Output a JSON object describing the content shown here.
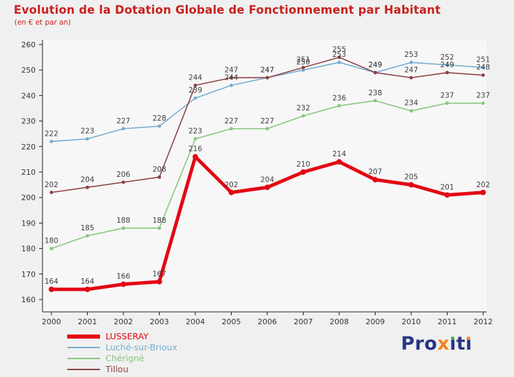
{
  "title": "Evolution de la Dotation Globale de Fonctionnement par Habitant",
  "subtitle": "(en € et par an)",
  "colors": {
    "title": "#c9211e",
    "background": "#f0f0f0",
    "plot_background": "#f7f7f7",
    "axis": "#1a1a1a",
    "value_label": "#3c3c3c",
    "tick_label": "#333333"
  },
  "legend": {
    "items": [
      {
        "label": "LUSSERAY",
        "color": "#e30613",
        "thick": true
      },
      {
        "label": "Luché-sur-Brioux",
        "color": "#74add1",
        "thick": false
      },
      {
        "label": "Chérigné",
        "color": "#86c67c",
        "thick": false
      },
      {
        "label": "Tillou",
        "color": "#8e4044",
        "thick": false
      }
    ]
  },
  "logo": {
    "name": "Proxiti",
    "segments": [
      {
        "text": "Pro",
        "color": "#283583"
      },
      {
        "text": "x",
        "color": "#f58220"
      },
      {
        "text": "ı",
        "color": "#283583",
        "dot": "#3fae49"
      },
      {
        "text": "t",
        "color": "#283583"
      },
      {
        "text": "ı",
        "color": "#283583",
        "dot": "#f58220"
      }
    ]
  },
  "chart_data": {
    "type": "line",
    "title": "Evolution de la Dotation Globale de Fonctionnement par Habitant",
    "subtitle": "(en € et par an)",
    "x": [
      2000,
      2001,
      2002,
      2003,
      2004,
      2005,
      2006,
      2007,
      2008,
      2009,
      2010,
      2011,
      2012
    ],
    "ylim": [
      160,
      260
    ],
    "yticks": [
      160,
      170,
      180,
      190,
      200,
      210,
      220,
      230,
      240,
      250,
      260
    ],
    "grid": false,
    "legend_position": "bottom-left",
    "series": [
      {
        "name": "LUSSERAY",
        "color": "#e30613",
        "width": 5,
        "marker": 4,
        "z": 4,
        "values": [
          164,
          164,
          166,
          167,
          216,
          202,
          204,
          210,
          214,
          207,
          205,
          201,
          202
        ]
      },
      {
        "name": "Luché-sur-Brioux",
        "color": "#74add1",
        "width": 1.6,
        "marker": 2.5,
        "z": 1,
        "values": [
          222,
          223,
          227,
          228,
          239,
          244,
          247,
          250,
          253,
          249,
          253,
          252,
          251
        ]
      },
      {
        "name": "Chérigné",
        "color": "#86c67c",
        "width": 1.6,
        "marker": 2.5,
        "z": 2,
        "values": [
          180,
          185,
          188,
          188,
          223,
          227,
          227,
          232,
          236,
          238,
          234,
          237,
          237
        ]
      },
      {
        "name": "Tillou",
        "color": "#8e4044",
        "width": 1.6,
        "marker": 2.5,
        "z": 3,
        "values": [
          202,
          204,
          206,
          208,
          244,
          247,
          247,
          251,
          255,
          249,
          247,
          249,
          248
        ]
      }
    ]
  }
}
